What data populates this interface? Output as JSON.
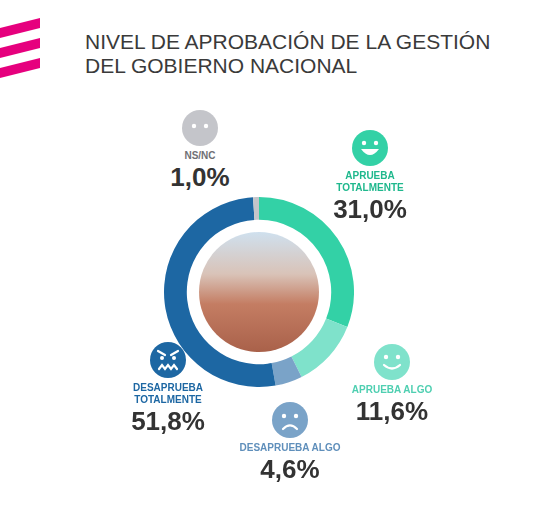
{
  "chart_data": {
    "type": "doughnut",
    "title": "NIVEL DE APROBACIÓN DE LA GESTIÓN DEL GOBIERNO NACIONAL",
    "categories": [
      "APRUEBA TOTALMENTE",
      "APRUEBA ALGO",
      "DESAPRUEBA ALGO",
      "DESAPRUEBA TOTALMENTE",
      "NS/NC"
    ],
    "values": [
      31.0,
      11.6,
      4.6,
      51.8,
      1.0
    ],
    "value_labels": [
      "31,0%",
      "11,6%",
      "4,6%",
      "51,8%",
      "1,0%"
    ],
    "colors": [
      "#33d1a6",
      "#7fe2cb",
      "#7aa3c8",
      "#1d67a3",
      "#c4c5ca"
    ],
    "data_labels": true
  }
}
